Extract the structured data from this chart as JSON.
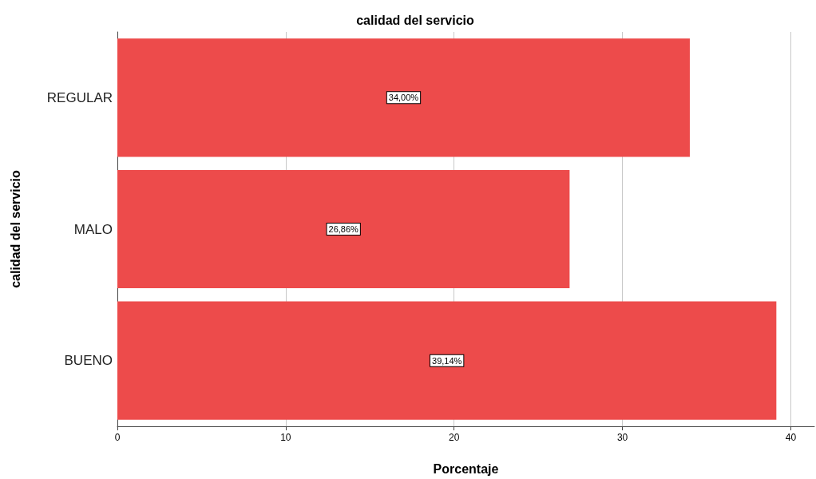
{
  "chart_data": {
    "type": "bar",
    "orientation": "horizontal",
    "title": "calidad del servicio",
    "xlabel": "Porcentaje",
    "ylabel": "calidad del servicio",
    "categories": [
      "REGULAR",
      "MALO",
      "BUENO"
    ],
    "values": [
      34.0,
      26.86,
      39.14
    ],
    "value_labels": [
      "34,00%",
      "26,86%",
      "39,14%"
    ],
    "color": "#ed4b4b",
    "xlim": [
      0,
      41.4
    ],
    "xticks": [
      0,
      10,
      20,
      30,
      40
    ],
    "grid": "x"
  }
}
